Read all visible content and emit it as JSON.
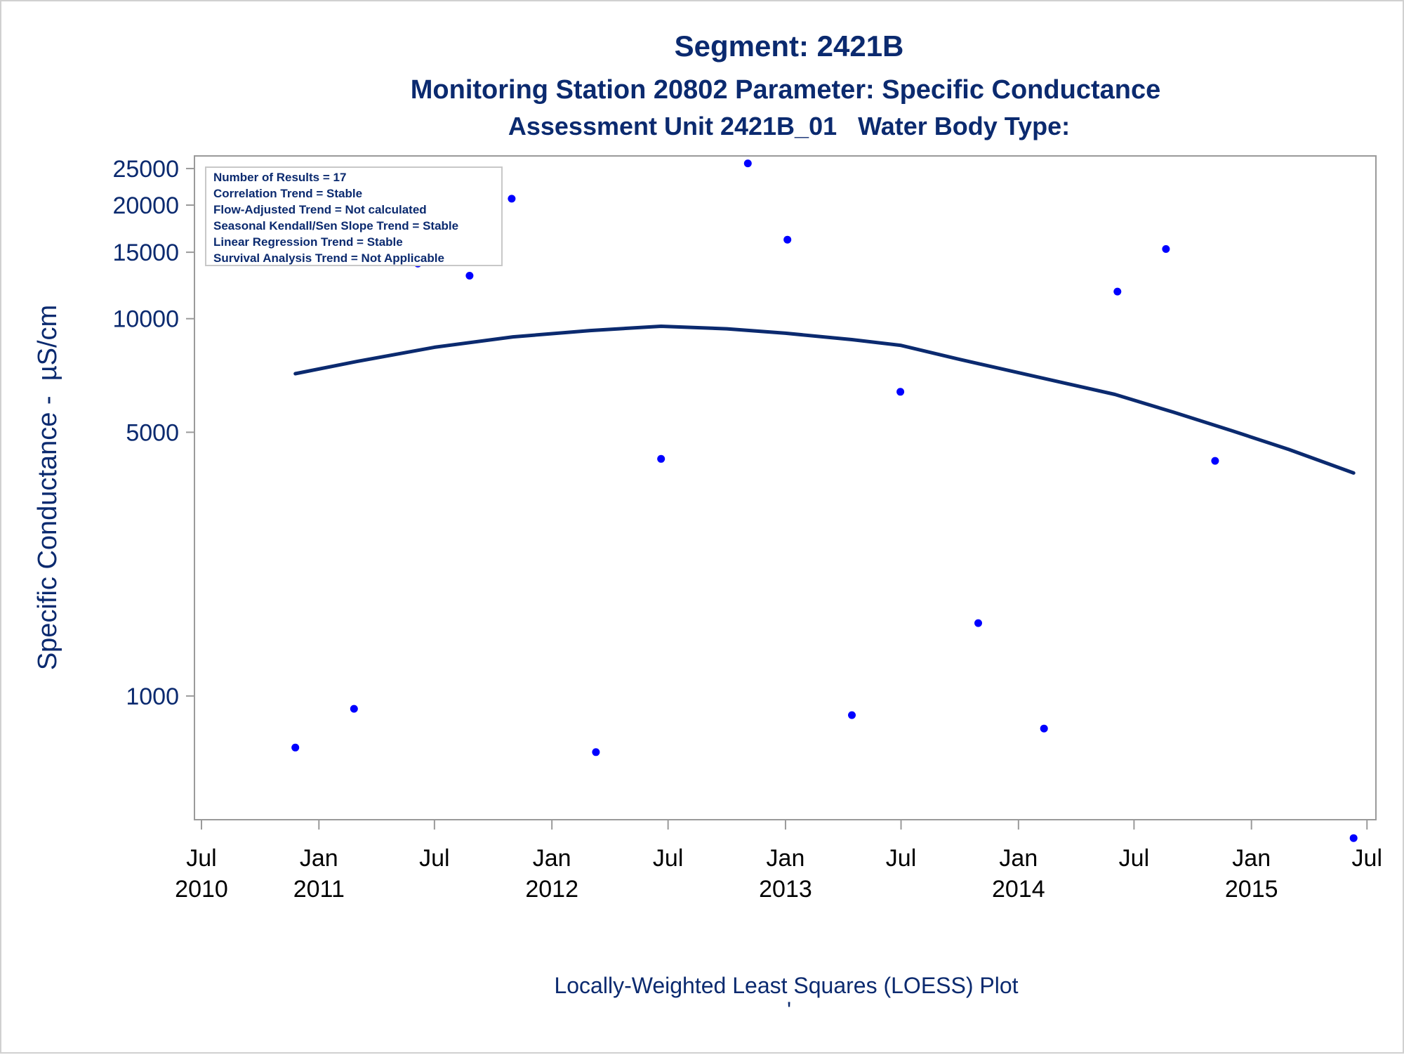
{
  "chart_data": {
    "type": "scatter",
    "title": "Segment: 2421B",
    "subtitle": "Monitoring Station 20802 Parameter: Specific Conductance",
    "subtitle2": "Assessment Unit 2421B_01   Water Body Type:",
    "ylabel": "Specific Conductance -  µS/cm",
    "xlabel": "",
    "footnote": "Locally-Weighted Least Squares (LOESS) Plot",
    "footnote_mark": "'",
    "y_scale": "log",
    "ylim": [
      470,
      27000
    ],
    "xlim": [
      "2010-06-20",
      "2015-07-15"
    ],
    "grid": false,
    "y_ticks": [
      {
        "value": 25000,
        "label": "25000"
      },
      {
        "value": 20000,
        "label": "20000"
      },
      {
        "value": 15000,
        "label": "15000"
      },
      {
        "value": 10000,
        "label": "10000"
      },
      {
        "value": 5000,
        "label": "5000"
      },
      {
        "value": 1000,
        "label": "1000"
      }
    ],
    "x_ticks": [
      {
        "date": "2010-07-01",
        "line1": "Jul",
        "line2": "2010"
      },
      {
        "date": "2011-01-01",
        "line1": "Jan",
        "line2": "2011"
      },
      {
        "date": "2011-07-01",
        "line1": "Jul",
        "line2": ""
      },
      {
        "date": "2012-01-01",
        "line1": "Jan",
        "line2": "2012"
      },
      {
        "date": "2012-07-01",
        "line1": "Jul",
        "line2": ""
      },
      {
        "date": "2013-01-01",
        "line1": "Jan",
        "line2": "2013"
      },
      {
        "date": "2013-07-01",
        "line1": "Jul",
        "line2": ""
      },
      {
        "date": "2014-01-01",
        "line1": "Jan",
        "line2": "2014"
      },
      {
        "date": "2014-07-01",
        "line1": "Jul",
        "line2": ""
      },
      {
        "date": "2015-01-01",
        "line1": "Jan",
        "line2": "2015"
      },
      {
        "date": "2015-07-01",
        "line1": "Jul",
        "line2": ""
      }
    ],
    "series": [
      {
        "type": "scatter",
        "color": "#0000ff",
        "points": [
          {
            "x": "2010-11-25",
            "y": 730
          },
          {
            "x": "2011-02-25",
            "y": 925
          },
          {
            "x": "2011-06-05",
            "y": 14000
          },
          {
            "x": "2011-08-25",
            "y": 13000
          },
          {
            "x": "2011-10-30",
            "y": 20800
          },
          {
            "x": "2012-03-10",
            "y": 710
          },
          {
            "x": "2012-06-20",
            "y": 4250
          },
          {
            "x": "2012-11-03",
            "y": 25800
          },
          {
            "x": "2013-01-04",
            "y": 16200
          },
          {
            "x": "2013-04-15",
            "y": 890
          },
          {
            "x": "2013-06-30",
            "y": 6400
          },
          {
            "x": "2013-10-30",
            "y": 1560
          },
          {
            "x": "2014-02-10",
            "y": 820
          },
          {
            "x": "2014-06-05",
            "y": 11800
          },
          {
            "x": "2014-08-20",
            "y": 15300
          },
          {
            "x": "2014-11-05",
            "y": 4200
          },
          {
            "x": "2015-06-10",
            "y": 420
          }
        ]
      },
      {
        "type": "line",
        "color": "#0b2a6f",
        "points": [
          {
            "x": "2010-11-25",
            "y": 7150
          },
          {
            "x": "2011-03-01",
            "y": 7700
          },
          {
            "x": "2011-07-01",
            "y": 8400
          },
          {
            "x": "2011-11-01",
            "y": 8950
          },
          {
            "x": "2012-03-01",
            "y": 9300
          },
          {
            "x": "2012-06-20",
            "y": 9550
          },
          {
            "x": "2012-10-01",
            "y": 9400
          },
          {
            "x": "2013-01-01",
            "y": 9150
          },
          {
            "x": "2013-04-15",
            "y": 8800
          },
          {
            "x": "2013-06-30",
            "y": 8500
          },
          {
            "x": "2013-10-01",
            "y": 7800
          },
          {
            "x": "2014-02-01",
            "y": 7000
          },
          {
            "x": "2014-06-01",
            "y": 6300
          },
          {
            "x": "2014-09-01",
            "y": 5650
          },
          {
            "x": "2014-12-01",
            "y": 5050
          },
          {
            "x": "2015-03-01",
            "y": 4500
          },
          {
            "x": "2015-06-10",
            "y": 3900
          }
        ]
      }
    ]
  },
  "stats_box": {
    "lines": [
      "Number of Results = 17",
      "Correlation Trend = Stable",
      "Flow-Adjusted Trend = Not calculated",
      "Seasonal Kendall/Sen Slope Trend = Stable",
      "Linear Regression Trend = Stable",
      "Survival Analysis Trend = Not Applicable"
    ]
  }
}
